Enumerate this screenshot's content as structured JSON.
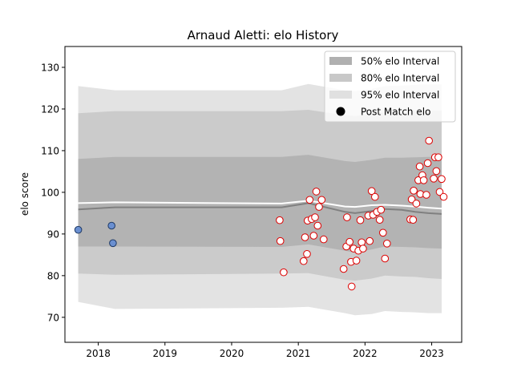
{
  "chart_data": {
    "type": "line",
    "title": "Arnaud Aletti: elo History",
    "xlabel": "",
    "ylabel": "elo score",
    "xlim": [
      2017.5,
      2023.45
    ],
    "ylim": [
      64,
      135
    ],
    "x_ticks": [
      {
        "value": 2018,
        "label": "2018"
      },
      {
        "value": 2019,
        "label": "2019"
      },
      {
        "value": 2020,
        "label": "2020"
      },
      {
        "value": 2021,
        "label": "2021"
      },
      {
        "value": 2022,
        "label": "2022"
      },
      {
        "value": 2023,
        "label": "2023"
      }
    ],
    "y_ticks": [
      {
        "value": 70,
        "label": "70"
      },
      {
        "value": 80,
        "label": "80"
      },
      {
        "value": 90,
        "label": "90"
      },
      {
        "value": 100,
        "label": "100"
      },
      {
        "value": 110,
        "label": "110"
      },
      {
        "value": 120,
        "label": "120"
      },
      {
        "value": 130,
        "label": "130"
      }
    ],
    "grid": false,
    "legend_position": "top-right",
    "legend": [
      {
        "label": "50% elo Interval",
        "kind": "patch",
        "color": "#b0b0b0"
      },
      {
        "label": "80% elo Interval",
        "kind": "patch",
        "color": "#c8c8c8"
      },
      {
        "label": "95% elo Interval",
        "kind": "patch",
        "color": "#e0e0e0"
      },
      {
        "label": "Post Match elo",
        "kind": "marker",
        "color": "#000000"
      }
    ],
    "bands": {
      "x": [
        2017.7,
        2018.25,
        2020.75,
        2021.15,
        2021.7,
        2021.85,
        2022.1,
        2022.3,
        2022.55,
        2022.75,
        2022.95,
        2023.15
      ],
      "mean": [
        95.9,
        96.4,
        96.4,
        97.4,
        95.3,
        95.0,
        95.5,
        96.0,
        95.8,
        95.3,
        95.0,
        94.8
      ],
      "p50_lo": [
        87.0,
        87.0,
        86.9,
        87.5,
        86.0,
        85.5,
        86.3,
        87.0,
        86.9,
        86.8,
        86.6,
        86.5
      ],
      "p50_hi": [
        108.0,
        108.5,
        108.5,
        109.0,
        107.5,
        107.3,
        107.8,
        108.3,
        108.3,
        108.4,
        108.5,
        108.5
      ],
      "p80_lo": [
        80.5,
        80.2,
        80.5,
        80.6,
        79.0,
        78.8,
        79.3,
        80.0,
        79.8,
        79.7,
        79.4,
        79.2
      ],
      "p80_hi": [
        119.0,
        119.5,
        119.5,
        119.8,
        118.5,
        118.3,
        118.8,
        119.2,
        119.3,
        119.5,
        119.6,
        119.6
      ],
      "p95_lo": [
        73.7,
        72.0,
        72.3,
        72.5,
        71.0,
        70.5,
        70.8,
        71.5,
        71.3,
        71.2,
        71.0,
        71.0
      ],
      "p95_hi": [
        125.5,
        124.5,
        124.5,
        126.0,
        124.5,
        124.3,
        124.8,
        125.5,
        125.6,
        125.8,
        125.9,
        125.9
      ]
    },
    "white_line": {
      "x": [
        2017.7,
        2018.25,
        2020.75,
        2021.15,
        2021.7,
        2021.85,
        2022.1,
        2022.3,
        2022.55,
        2022.75,
        2022.95,
        2023.15
      ],
      "y": [
        97.4,
        97.6,
        97.3,
        98.0,
        96.6,
        96.5,
        96.9,
        97.0,
        96.8,
        96.6,
        96.3,
        96.1
      ]
    },
    "series": [
      {
        "name": "Post Match elo",
        "style": "blue",
        "points": [
          [
            2017.7,
            91.0
          ],
          [
            2018.2,
            92.0
          ],
          [
            2018.22,
            87.8
          ]
        ]
      },
      {
        "name": "Post Match elo",
        "style": "red",
        "points": [
          [
            2020.72,
            93.3
          ],
          [
            2020.73,
            88.3
          ],
          [
            2020.78,
            80.8
          ],
          [
            2021.08,
            83.5
          ],
          [
            2021.1,
            89.2
          ],
          [
            2021.13,
            85.2
          ],
          [
            2021.14,
            93.2
          ],
          [
            2021.17,
            98.2
          ],
          [
            2021.2,
            93.6
          ],
          [
            2021.23,
            89.6
          ],
          [
            2021.25,
            94.0
          ],
          [
            2021.27,
            100.2
          ],
          [
            2021.29,
            92.0
          ],
          [
            2021.31,
            96.5
          ],
          [
            2021.35,
            98.2
          ],
          [
            2021.38,
            88.7
          ],
          [
            2021.68,
            81.6
          ],
          [
            2021.72,
            87.0
          ],
          [
            2021.73,
            94.0
          ],
          [
            2021.77,
            88.1
          ],
          [
            2021.79,
            83.3
          ],
          [
            2021.8,
            77.4
          ],
          [
            2021.83,
            86.5
          ],
          [
            2021.87,
            83.6
          ],
          [
            2021.9,
            86.0
          ],
          [
            2021.93,
            93.3
          ],
          [
            2021.95,
            88.0
          ],
          [
            2021.97,
            86.5
          ],
          [
            2022.05,
            94.4
          ],
          [
            2022.07,
            88.3
          ],
          [
            2022.1,
            100.3
          ],
          [
            2022.12,
            94.6
          ],
          [
            2022.15,
            98.9
          ],
          [
            2022.18,
            95.3
          ],
          [
            2022.22,
            93.4
          ],
          [
            2022.24,
            95.8
          ],
          [
            2022.27,
            90.3
          ],
          [
            2022.3,
            84.1
          ],
          [
            2022.33,
            87.7
          ],
          [
            2022.68,
            93.5
          ],
          [
            2022.7,
            98.3
          ],
          [
            2022.72,
            93.4
          ],
          [
            2022.73,
            100.4
          ],
          [
            2022.77,
            97.3
          ],
          [
            2022.8,
            102.9
          ],
          [
            2022.82,
            106.2
          ],
          [
            2022.83,
            99.6
          ],
          [
            2022.86,
            104.1
          ],
          [
            2022.88,
            102.9
          ],
          [
            2022.92,
            99.4
          ],
          [
            2022.94,
            107.0
          ],
          [
            2022.96,
            112.4
          ],
          [
            2023.03,
            103.3
          ],
          [
            2023.05,
            108.4
          ],
          [
            2023.07,
            105.1
          ],
          [
            2023.1,
            108.4
          ],
          [
            2023.12,
            100.1
          ],
          [
            2023.15,
            103.2
          ],
          [
            2023.18,
            98.9
          ]
        ]
      }
    ]
  }
}
